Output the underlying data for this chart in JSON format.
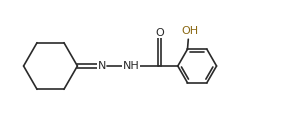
{
  "bg_color": "#ffffff",
  "line_color": "#2a2a2a",
  "text_color": "#2a2a2a",
  "oh_color": "#8B6914",
  "label_N": "N",
  "label_NH": "NH",
  "label_O": "O",
  "label_OH": "OH",
  "figsize": [
    2.84,
    1.32
  ],
  "dpi": 100,
  "xlim": [
    0.0,
    10.5
  ],
  "ylim": [
    0.8,
    5.2
  ]
}
